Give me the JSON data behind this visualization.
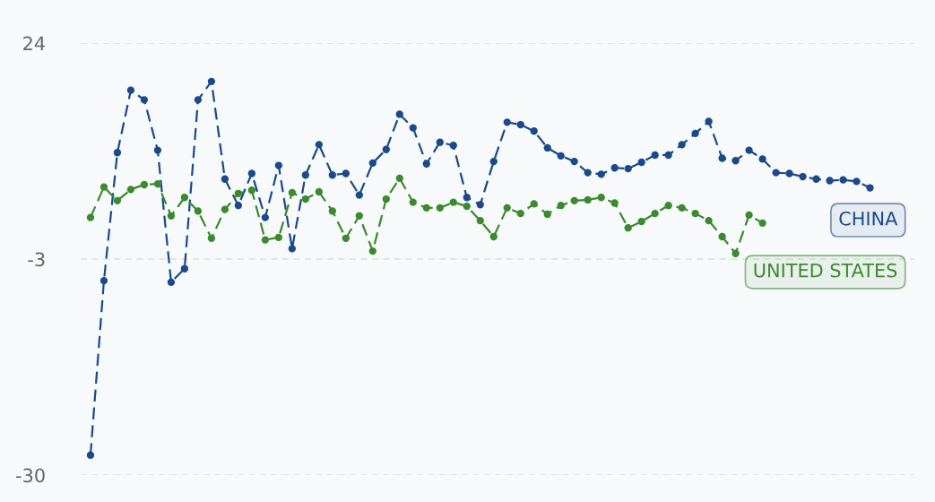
{
  "chart_data": {
    "type": "line",
    "categories": [
      null,
      null,
      null,
      null,
      null,
      null,
      null,
      null,
      null,
      null,
      null,
      null,
      null,
      null,
      null,
      null,
      null,
      null,
      null,
      null,
      null,
      null,
      null,
      null,
      null,
      null,
      null,
      null,
      null,
      null,
      null,
      null,
      null,
      null,
      null,
      null,
      null,
      null,
      null,
      null,
      null,
      null,
      null,
      null,
      null,
      null,
      null,
      null,
      null,
      null,
      null,
      null,
      null,
      null,
      null,
      null,
      null,
      null,
      null
    ],
    "series": [
      {
        "name": "CHINA",
        "color": "#1a4a8a",
        "values": [
          -27.5,
          -5.7,
          10.3,
          18.1,
          16.9,
          10.6,
          -5.9,
          -4.2,
          16.9,
          19.2,
          7.0,
          3.7,
          7.7,
          2.2,
          8.7,
          -1.7,
          7.5,
          11.3,
          7.5,
          7.7,
          5.0,
          9.0,
          10.7,
          15.1,
          13.4,
          8.9,
          11.6,
          11.2,
          4.7,
          3.8,
          9.2,
          14.1,
          13.8,
          13.0,
          10.9,
          9.9,
          9.2,
          7.8,
          7.6,
          8.4,
          8.3,
          9.1,
          10.0,
          10.0,
          11.3,
          12.7,
          14.2,
          9.6,
          9.3,
          10.6,
          9.5,
          7.8,
          7.7,
          7.3,
          7.0,
          6.8,
          6.9,
          6.7,
          5.9
        ]
      },
      {
        "name": "UNITED STATES",
        "color": "#3a8a2e",
        "values": [
          2.2,
          6.0,
          4.3,
          5.7,
          6.3,
          6.4,
          2.4,
          4.7,
          3.0,
          -0.4,
          3.2,
          5.2,
          5.6,
          -0.6,
          -0.3,
          5.3,
          4.5,
          5.4,
          3.0,
          -0.4,
          2.4,
          -2.0,
          4.5,
          7.1,
          4.1,
          3.4,
          3.4,
          4.1,
          3.6,
          1.8,
          -0.2,
          3.4,
          2.7,
          3.9,
          2.6,
          3.7,
          4.3,
          4.4,
          4.7,
          4.0,
          0.9,
          1.7,
          2.7,
          3.7,
          3.4,
          2.7,
          1.8,
          -0.2,
          -2.3,
          2.5,
          1.5,
          null,
          null,
          null,
          null,
          null,
          null,
          null,
          null
        ]
      }
    ],
    "ylim": [
      -30,
      24
    ],
    "yticks": [
      24,
      -3,
      -30
    ],
    "grid": "y",
    "marker": "circle",
    "line_style": "dashed"
  }
}
